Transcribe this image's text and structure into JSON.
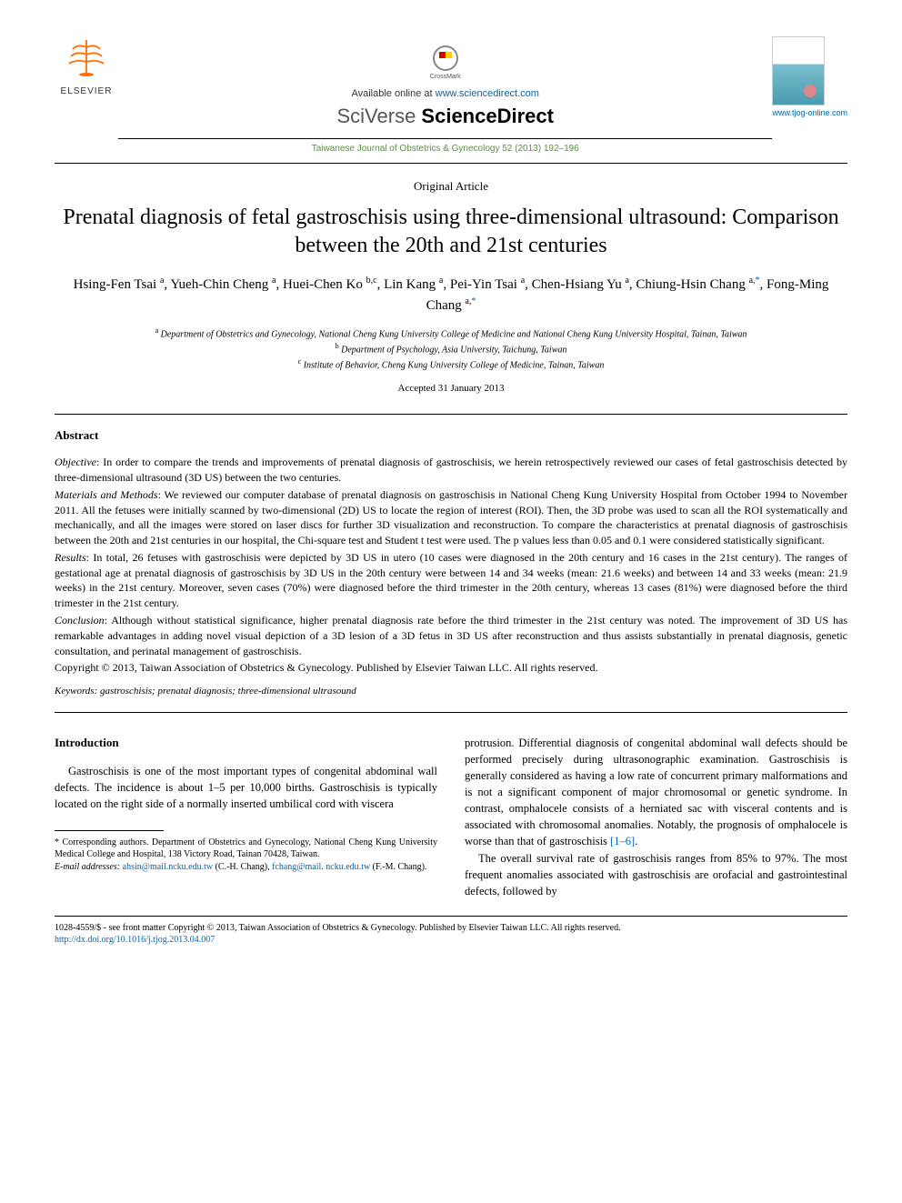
{
  "header": {
    "elsevier": "ELSEVIER",
    "crossmark": "CrossMark",
    "available_prefix": "Available online at ",
    "available_url": "www.sciencedirect.com",
    "brand_sv": "SciVerse ",
    "brand_sd": "ScienceDirect",
    "journal_ref": "Taiwanese Journal of Obstetrics & Gynecology 52 (2013) 192–196",
    "tjog_url": "www.tjog-online.com"
  },
  "article": {
    "type": "Original Article",
    "title": "Prenatal diagnosis of fetal gastroschisis using three-dimensional ultrasound: Comparison between the 20th and 21st centuries",
    "authors_html": "Hsing-Fen Tsai <sup>a</sup>, Yueh-Chin Cheng <sup>a</sup>, Huei-Chen Ko <sup>b,c</sup>, Lin Kang <sup>a</sup>, Pei-Yin Tsai <sup>a</sup>, Chen-Hsiang Yu <sup>a</sup>, Chiung-Hsin Chang <sup>a,</sup><sup class='corr'>*</sup>, Fong-Ming Chang <sup>a,</sup><sup class='corr'>*</sup>",
    "affiliations": {
      "a": "Department of Obstetrics and Gynecology, National Cheng Kung University College of Medicine and National Cheng Kung University Hospital, Tainan, Taiwan",
      "b": "Department of Psychology, Asia University, Taichung, Taiwan",
      "c": "Institute of Behavior, Cheng Kung University College of Medicine, Tainan, Taiwan"
    },
    "accepted": "Accepted 31 January 2013"
  },
  "abstract": {
    "heading": "Abstract",
    "objective_label": "Objective",
    "objective": ": In order to compare the trends and improvements of prenatal diagnosis of gastroschisis, we herein retrospectively reviewed our cases of fetal gastroschisis detected by three-dimensional ultrasound (3D US) between the two centuries.",
    "methods_label": "Materials and Methods",
    "methods": ": We reviewed our computer database of prenatal diagnosis on gastroschisis in National Cheng Kung University Hospital from October 1994 to November 2011. All the fetuses were initially scanned by two-dimensional (2D) US to locate the region of interest (ROI). Then, the 3D probe was used to scan all the ROI systematically and mechanically, and all the images were stored on laser discs for further 3D visualization and reconstruction. To compare the characteristics at prenatal diagnosis of gastroschisis between the 20th and 21st centuries in our hospital, the Chi-square test and Student t test were used. The p values less than 0.05 and 0.1 were considered statistically significant.",
    "results_label": "Results",
    "results": ": In total, 26 fetuses with gastroschisis were depicted by 3D US in utero (10 cases were diagnosed in the 20th century and 16 cases in the 21st century). The ranges of gestational age at prenatal diagnosis of gastroschisis by 3D US in the 20th century were between 14 and 34 weeks (mean: 21.6 weeks) and between 14 and 33 weeks (mean: 21.9 weeks) in the 21st century. Moreover, seven cases (70%) were diagnosed before the third trimester in the 20th century, whereas 13 cases (81%) were diagnosed before the third trimester in the 21st century.",
    "conclusion_label": "Conclusion",
    "conclusion": ": Although without statistical significance, higher prenatal diagnosis rate before the third trimester in the 21st century was noted. The improvement of 3D US has remarkable advantages in adding novel visual depiction of a 3D lesion of a 3D fetus in 3D US after reconstruction and thus assists substantially in prenatal diagnosis, genetic consultation, and perinatal management of gastroschisis.",
    "copyright": "Copyright © 2013, Taiwan Association of Obstetrics & Gynecology. Published by Elsevier Taiwan LLC. All rights reserved.",
    "keywords_label": "Keywords:",
    "keywords": " gastroschisis; prenatal diagnosis; three-dimensional ultrasound"
  },
  "body": {
    "intro_heading": "Introduction",
    "col1_p1": "Gastroschisis is one of the most important types of congenital abdominal wall defects. The incidence is about 1–5 per 10,000 births. Gastroschisis is typically located on the right side of a normally inserted umbilical cord with viscera",
    "col2_p1_a": "protrusion. Differential diagnosis of congenital abdominal wall defects should be performed precisely during ultrasonographic examination. Gastroschisis is generally considered as having a low rate of concurrent primary malformations and is not a significant component of major chromosomal or genetic syndrome. In contrast, omphalocele consists of a herniated sac with visceral contents and is associated with chromosomal anomalies. Notably, the prognosis of omphalocele is worse than that of gastroschisis ",
    "col2_ref": "[1–6]",
    "col2_p1_b": ".",
    "col2_p2": "The overall survival rate of gastroschisis ranges from 85% to 97%. The most frequent anomalies associated with gastroschisis are orofacial and gastrointestinal defects, followed by"
  },
  "footnotes": {
    "corr_label": "* Corresponding authors. ",
    "corr_text": "Department of Obstetrics and Gynecology, National Cheng Kung University Medical College and Hospital, 138 Victory Road, Tainan 70428, Taiwan.",
    "email_label": "E-mail addresses: ",
    "email1": "ahsin@mail.ncku.edu.tw",
    "email1_who": " (C.-H. Chang), ",
    "email2": "fchang@mail.\nncku.edu.tw",
    "email2_who": " (F.-M. Chang)."
  },
  "bottom": {
    "line": "1028-4559/$ - see front matter Copyright © 2013, Taiwan Association of Obstetrics & Gynecology. Published by Elsevier Taiwan LLC. All rights reserved.",
    "doi": "http://dx.doi.org/10.1016/j.tjog.2013.04.007"
  }
}
